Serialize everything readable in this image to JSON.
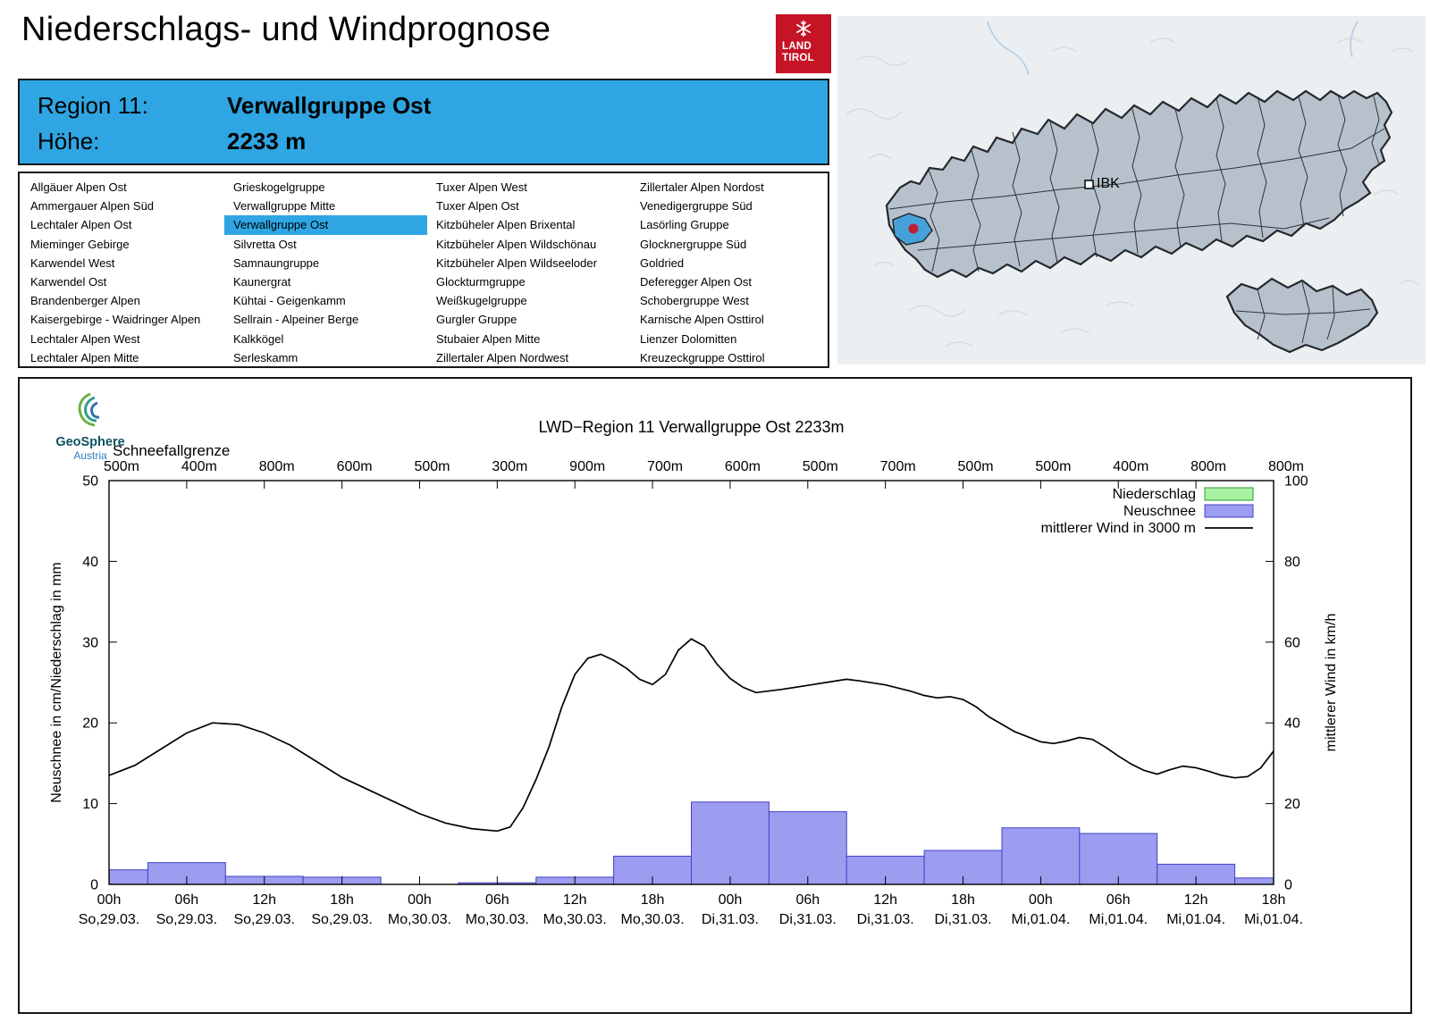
{
  "page": {
    "title": "Niederschlags- und Windprognose"
  },
  "land_tirol_logo": {
    "line1": "LAND",
    "line2": "TIROL"
  },
  "map": {
    "marker_label": "IBK"
  },
  "region_header": {
    "region_label": "Region 11:",
    "region_value": "Verwallgruppe Ost",
    "altitude_label": "Höhe:",
    "altitude_value": "2233 m"
  },
  "region_list": {
    "selected": "Verwallgruppe Ost",
    "columns": [
      [
        "Allgäuer Alpen Ost",
        "Ammergauer Alpen Süd",
        "Lechtaler Alpen Ost",
        "Mieminger Gebirge",
        "Karwendel West",
        "Karwendel Ost",
        "Brandenberger Alpen",
        "Kaisergebirge - Waidringer Alpen",
        "Lechtaler Alpen West",
        "Lechtaler Alpen Mitte"
      ],
      [
        "Grieskogelgruppe",
        "Verwallgruppe Mitte",
        "Verwallgruppe Ost",
        "Silvretta Ost",
        "Samnaungruppe",
        "Kaunergrat",
        "Kühtai - Geigenkamm",
        "Sellrain - Alpeiner Berge",
        "Kalkkögel",
        "Serleskamm"
      ],
      [
        "Tuxer Alpen West",
        "Tuxer Alpen Ost",
        "Kitzbüheler Alpen Brixental",
        "Kitzbüheler Alpen Wildschönau",
        "Kitzbüheler Alpen Wildseeloder",
        "Glockturmgruppe",
        "Weißkugelgruppe",
        "Gurgler Gruppe",
        "Stubaier Alpen Mitte",
        "Zillertaler Alpen Nordwest"
      ],
      [
        "Zillertaler Alpen Nordost",
        "Venedigergruppe Süd",
        "Lasörling Gruppe",
        "Glocknergruppe Süd",
        "Goldried",
        "Deferegger Alpen Ost",
        "Schobergruppe West",
        "Karnische Alpen Osttirol",
        "Lienzer Dolomitten",
        "Kreuzeckgruppe Osttirol"
      ]
    ]
  },
  "geosphere_logo": {
    "name": "GeoSphere",
    "sub": "Austria"
  },
  "colors": {
    "accent_blue": "#2fa6e3",
    "logo_red": "#c41425",
    "map_land": "#b7c1cb",
    "map_highlight": "#45a2d9",
    "marker_red": "#c01f2f",
    "neuschnee_fill": "#9c9cf0",
    "neuschnee_stroke": "#4343c8",
    "niederschlag_fill": "#a9f2a2",
    "niederschlag_stroke": "#2e9b2e",
    "wind_line": "#000000"
  },
  "chart_data": {
    "type": "bar",
    "title": "LWD−Region 11 Verwallgruppe Ost 2233m",
    "snowline_label": "Schneefallgrenze",
    "snowline_values": [
      "500m",
      "400m",
      "800m",
      "600m",
      "500m",
      "300m",
      "900m",
      "700m",
      "600m",
      "500m",
      "700m",
      "500m",
      "500m",
      "400m",
      "800m",
      "800m"
    ],
    "x_range_hours": [
      0,
      90
    ],
    "x_ticks": [
      {
        "hour": 0,
        "time": "00h",
        "date": "So,29.03."
      },
      {
        "hour": 6,
        "time": "06h",
        "date": "So,29.03."
      },
      {
        "hour": 12,
        "time": "12h",
        "date": "So,29.03."
      },
      {
        "hour": 18,
        "time": "18h",
        "date": "So,29.03."
      },
      {
        "hour": 24,
        "time": "00h",
        "date": "Mo,30.03."
      },
      {
        "hour": 30,
        "time": "06h",
        "date": "Mo,30.03."
      },
      {
        "hour": 36,
        "time": "12h",
        "date": "Mo,30.03."
      },
      {
        "hour": 42,
        "time": "18h",
        "date": "Mo,30.03."
      },
      {
        "hour": 48,
        "time": "00h",
        "date": "Di,31.03."
      },
      {
        "hour": 54,
        "time": "06h",
        "date": "Di,31.03."
      },
      {
        "hour": 60,
        "time": "12h",
        "date": "Di,31.03."
      },
      {
        "hour": 66,
        "time": "18h",
        "date": "Di,31.03."
      },
      {
        "hour": 72,
        "time": "00h",
        "date": "Mi,01.04."
      },
      {
        "hour": 78,
        "time": "06h",
        "date": "Mi,01.04."
      },
      {
        "hour": 84,
        "time": "12h",
        "date": "Mi,01.04."
      },
      {
        "hour": 90,
        "time": "18h",
        "date": "Mi,01.04."
      }
    ],
    "axis_left": {
      "label": "Neuschnee in cm/Niederschlag in mm",
      "lim": [
        0,
        50
      ],
      "ticks": [
        0,
        10,
        20,
        30,
        40,
        50
      ]
    },
    "axis_right": {
      "label": "mittlerer Wind in km/h",
      "lim": [
        0,
        100
      ],
      "ticks": [
        0,
        20,
        40,
        60,
        80,
        100
      ]
    },
    "legend": [
      {
        "label": "Niederschlag",
        "type": "bar",
        "fill": "#a9f2a2",
        "stroke": "#2e9b2e"
      },
      {
        "label": "Neuschnee",
        "type": "bar",
        "fill": "#9c9cf0",
        "stroke": "#4343c8"
      },
      {
        "label": "mittlerer Wind in 3000 m",
        "type": "line",
        "stroke": "#000000"
      }
    ],
    "series": {
      "niederschlag_mm": {
        "bar_width_hours": 6,
        "centers": [],
        "values": []
      },
      "neuschnee_cm": {
        "bar_width_hours": 6,
        "centers": [
          0,
          6,
          12,
          18,
          24,
          30,
          36,
          42,
          48,
          54,
          60,
          66,
          72,
          78,
          84,
          90
        ],
        "values": [
          1.8,
          2.7,
          1.0,
          0.9,
          0,
          0.2,
          0.9,
          3.5,
          10.2,
          9.0,
          3.5,
          4.2,
          7.0,
          6.3,
          2.5,
          0.8
        ]
      },
      "wind_kmh": {
        "points": [
          [
            0,
            27
          ],
          [
            2,
            29.5
          ],
          [
            4,
            33.5
          ],
          [
            6,
            37.5
          ],
          [
            8,
            40
          ],
          [
            10,
            39.6
          ],
          [
            12,
            37.5
          ],
          [
            14,
            34.5
          ],
          [
            16,
            30.5
          ],
          [
            18,
            26.5
          ],
          [
            20,
            23.5
          ],
          [
            22,
            20.5
          ],
          [
            24,
            17.5
          ],
          [
            26,
            15.2
          ],
          [
            28,
            13.8
          ],
          [
            30,
            13.2
          ],
          [
            31,
            14.2
          ],
          [
            32,
            19
          ],
          [
            33,
            26
          ],
          [
            34,
            34
          ],
          [
            35,
            44
          ],
          [
            36,
            52
          ],
          [
            37,
            56
          ],
          [
            38,
            57
          ],
          [
            39,
            55.5
          ],
          [
            40,
            53.5
          ],
          [
            41,
            50.8
          ],
          [
            42,
            49.5
          ],
          [
            43,
            52
          ],
          [
            44,
            58
          ],
          [
            45,
            60.8
          ],
          [
            46,
            59
          ],
          [
            47,
            54.5
          ],
          [
            48,
            51
          ],
          [
            49,
            48.8
          ],
          [
            50,
            47.5
          ],
          [
            52,
            48.3
          ],
          [
            54,
            49.3
          ],
          [
            56,
            50.3
          ],
          [
            57,
            50.8
          ],
          [
            58,
            50.4
          ],
          [
            60,
            49.4
          ],
          [
            62,
            47.8
          ],
          [
            63,
            46.8
          ],
          [
            64,
            46.2
          ],
          [
            65,
            46.5
          ],
          [
            66,
            45.8
          ],
          [
            67,
            44
          ],
          [
            68,
            41.5
          ],
          [
            70,
            37.8
          ],
          [
            72,
            35.3
          ],
          [
            73,
            34.9
          ],
          [
            74,
            35.5
          ],
          [
            75,
            36.4
          ],
          [
            76,
            35.9
          ],
          [
            77,
            34
          ],
          [
            78,
            31.8
          ],
          [
            79,
            29.8
          ],
          [
            80,
            28.2
          ],
          [
            81,
            27.3
          ],
          [
            82,
            28.4
          ],
          [
            83,
            29.3
          ],
          [
            84,
            28.9
          ],
          [
            85,
            28
          ],
          [
            86,
            27
          ],
          [
            87,
            26.4
          ],
          [
            88,
            26.7
          ],
          [
            89,
            28.8
          ],
          [
            90,
            33
          ]
        ]
      }
    }
  }
}
